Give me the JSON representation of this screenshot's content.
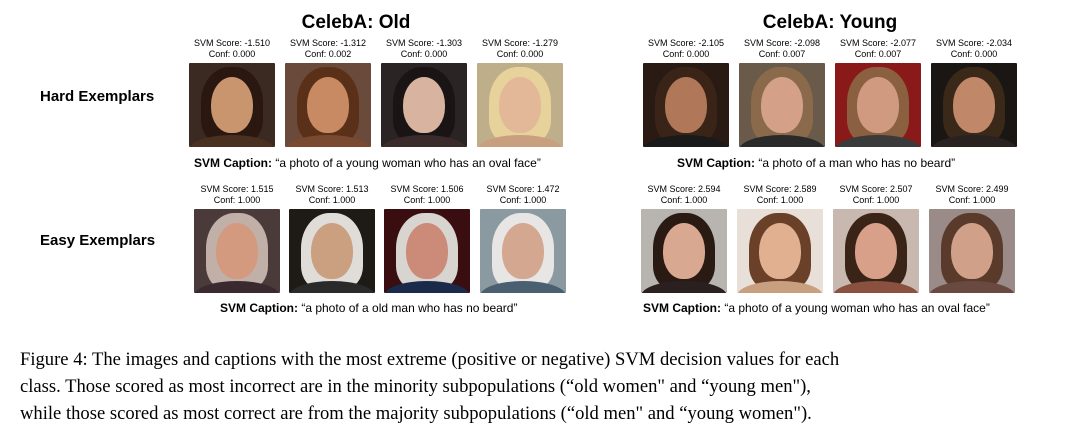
{
  "panels": [
    {
      "title": "CelebA: Old",
      "rows": [
        {
          "tiles": [
            {
              "score": "SVM Score: -1.510",
              "conf": "Conf: 0.000",
              "skin": "#c9956f",
              "hair": "#2a1810",
              "bg": "#3a2a22",
              "shirt": "#4a3020"
            },
            {
              "score": "SVM Score: -1.312",
              "conf": "Conf: 0.002",
              "skin": "#c88a63",
              "hair": "#5a3018",
              "bg": "#6a4a3a",
              "shirt": "#7a4a30"
            },
            {
              "score": "SVM Score: -1.303",
              "conf": "Conf: 0.000",
              "skin": "#d8b4a0",
              "hair": "#1a1414",
              "bg": "#2a2424",
              "shirt": "#3a2a2a"
            },
            {
              "score": "SVM Score: -1.279",
              "conf": "Conf: 0.000",
              "skin": "#e2b898",
              "hair": "#e6d29a",
              "bg": "#bfae8a",
              "shirt": "#c8a080"
            }
          ],
          "caption_prefix": "SVM Caption:",
          "caption_text": " “a photo of a young woman who has an oval face”"
        },
        {
          "tiles": [
            {
              "score": "SVM Score: 1.515",
              "conf": "Conf: 1.000",
              "skin": "#d49a80",
              "hair": "#c0b0a8",
              "bg": "#4a3a3a",
              "shirt": "#3a2a30"
            },
            {
              "score": "SVM Score: 1.513",
              "conf": "Conf: 1.000",
              "skin": "#caa080",
              "hair": "#e0ddd8",
              "bg": "#1e1a16",
              "shirt": "#2a2a2a"
            },
            {
              "score": "SVM Score: 1.506",
              "conf": "Conf: 1.000",
              "skin": "#cc8a78",
              "hair": "#d8d4d0",
              "bg": "#3a0e10",
              "shirt": "#1a2a4a"
            },
            {
              "score": "SVM Score: 1.472",
              "conf": "Conf: 1.000",
              "skin": "#d4a890",
              "hair": "#e8e6e4",
              "bg": "#8a9aa0",
              "shirt": "#4a6070"
            }
          ],
          "caption_prefix": "SVM Caption:",
          "caption_text": " “a photo of a old man who has no beard”"
        }
      ]
    },
    {
      "title": "CelebA: Young",
      "rows": [
        {
          "tiles": [
            {
              "score": "SVM Score: -2.105",
              "conf": "Conf: 0.000",
              "skin": "#b07858",
              "hair": "#3a2418",
              "bg": "#2a1a14",
              "shirt": "#1a1a1a"
            },
            {
              "score": "SVM Score: -2.098",
              "conf": "Conf: 0.007",
              "skin": "#d4a088",
              "hair": "#8a6a4a",
              "bg": "#6a5a4a",
              "shirt": "#2a2a2a"
            },
            {
              "score": "SVM Score: -2.077",
              "conf": "Conf: 0.007",
              "skin": "#d09a80",
              "hair": "#8a6040",
              "bg": "#8a1a1a",
              "shirt": "#3a3a3a"
            },
            {
              "score": "SVM Score: -2.034",
              "conf": "Conf: 0.000",
              "skin": "#c08868",
              "hair": "#3a2818",
              "bg": "#1a1614",
              "shirt": "#2a2220"
            }
          ],
          "caption_prefix": "SVM Caption:",
          "caption_text": " “a photo of a man who has no beard”"
        },
        {
          "tiles": [
            {
              "score": "SVM Score: 2.594",
              "conf": "Conf: 1.000",
              "skin": "#d8a890",
              "hair": "#2a1a14",
              "bg": "#b8b4b0",
              "shirt": "#2a2020"
            },
            {
              "score": "SVM Score: 2.589",
              "conf": "Conf: 1.000",
              "skin": "#e0b090",
              "hair": "#6a4028",
              "bg": "#e8e0d8",
              "shirt": "#c8a080"
            },
            {
              "score": "SVM Score: 2.507",
              "conf": "Conf: 1.000",
              "skin": "#d8a088",
              "hair": "#3a2418",
              "bg": "#c8b8b0",
              "shirt": "#8a5040"
            },
            {
              "score": "SVM Score: 2.499",
              "conf": "Conf: 1.000",
              "skin": "#d0a088",
              "hair": "#5a3a2a",
              "bg": "#9a8a88",
              "shirt": "#6a4a40"
            }
          ],
          "caption_prefix": "SVM Caption:",
          "caption_text": " “a photo of a young woman who has an oval face”"
        }
      ]
    }
  ],
  "row_labels": [
    "Hard Exemplars",
    "Easy Exemplars"
  ],
  "figure_caption": {
    "lines": [
      "Figure 4: The images and captions with the most extreme (positive or negative) SVM decision values for each",
      "class. Those scored as most incorrect are in the minority subpopulations (“old women\" and “young men\"),",
      "while those scored as most correct are from the majority subpopulations (“old men\" and “young women\")."
    ]
  }
}
